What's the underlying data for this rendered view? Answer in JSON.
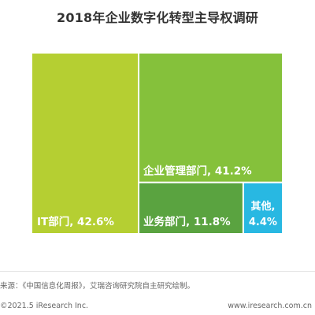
{
  "chart_data": {
    "type": "treemap",
    "title": "2018年企业数字化转型主导权调研",
    "items": [
      {
        "name": "IT部门",
        "value": 42.6,
        "label": "IT部门, 42.6%",
        "color": "#b5cf32"
      },
      {
        "name": "企业管理部门",
        "value": 41.2,
        "label": "企业管理部门, 41.2%",
        "color": "#85c13b"
      },
      {
        "name": "业务部门",
        "value": 11.8,
        "label": "业务部门, 11.8%",
        "color": "#5aa340"
      },
      {
        "name": "其他",
        "value": 4.4,
        "label_lines": [
          "其他,",
          "4.4%"
        ],
        "color": "#28b8e2"
      }
    ]
  },
  "footer": {
    "source": "来源：《中国信息化周报》，艾瑞咨询研究院自主研究绘制。",
    "copyright": "©2021.5 iResearch Inc.",
    "website": "www.iresearch.com.cn"
  }
}
